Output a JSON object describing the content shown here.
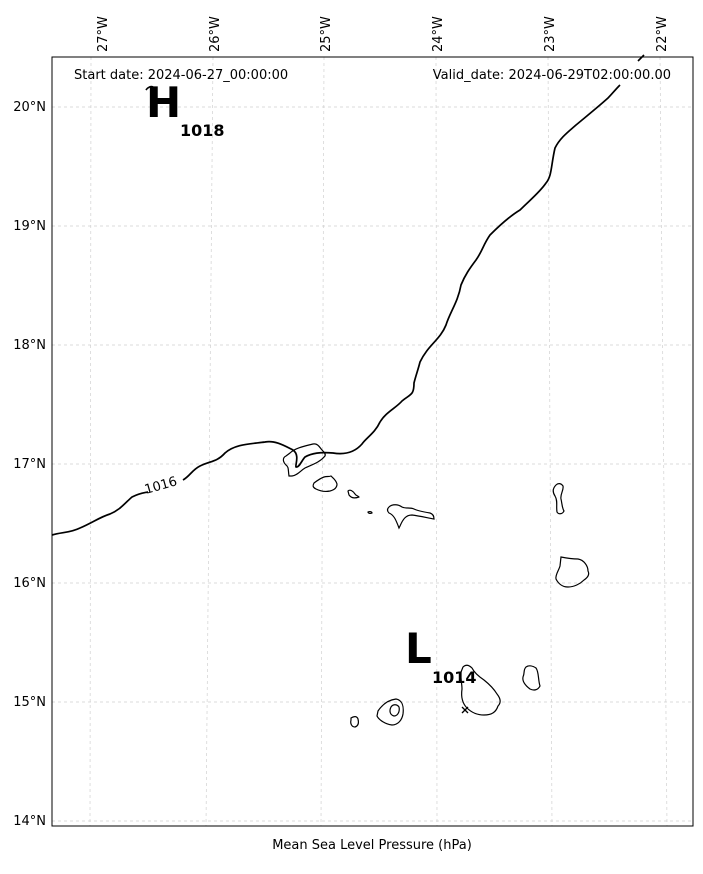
{
  "info": {
    "start_date": "Start date: 2024-06-27_00:00:00",
    "valid_date": "Valid_date: 2024-06-29T02:00:00.00"
  },
  "xlabel": "Mean Sea Level Pressure (hPa)",
  "longitudes": [
    "27°W",
    "26°W",
    "25°W",
    "24°W",
    "23°W",
    "22°W"
  ],
  "latitudes": [
    "20°N",
    "19°N",
    "18°N",
    "17°N",
    "16°N",
    "15°N",
    "14°N"
  ],
  "pressure_centers": [
    {
      "letter": "H",
      "value": "1018"
    },
    {
      "letter": "L",
      "value": "1014"
    }
  ],
  "isobars": [
    {
      "label": "1016"
    }
  ]
}
